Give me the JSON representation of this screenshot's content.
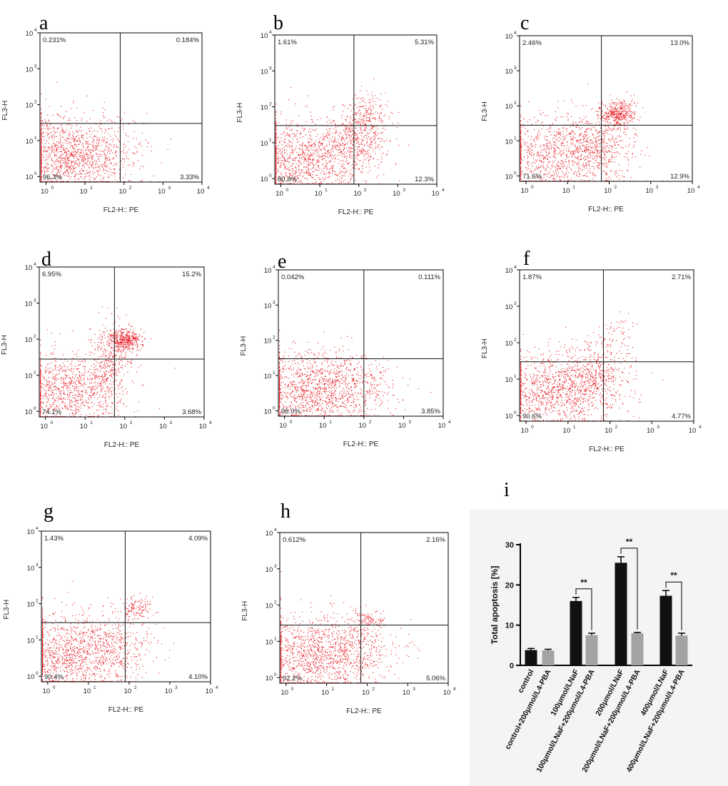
{
  "colors": {
    "dots": "#e8141c",
    "bar_black": "#111111",
    "bar_gray": "#a3a3a3",
    "panel_bg": "#f4f4f4"
  },
  "flow_axes": {
    "x_title": "FL2-H:: PE",
    "y_title": "FL3-H",
    "tick_base": "10",
    "tick_exps": [
      "0",
      "1",
      "2",
      "3",
      "4"
    ]
  },
  "chart_data": [
    {
      "type": "scatter",
      "panel": "a",
      "quadrants": {
        "ul": "0.231%",
        "ur": "0.184%",
        "ll": "96.3%",
        "lr": "3.33%"
      },
      "gate": {
        "x": 80,
        "y": 30
      },
      "xlabel": "FL2-H:: PE",
      "ylabel": "FL3-H",
      "xlim": [
        0.7,
        10000
      ],
      "ylim": [
        0.7,
        10000
      ],
      "scale": "log",
      "clusters": [
        {
          "cx": 3,
          "cy": 4,
          "sx": 0.8,
          "sy": 0.55,
          "n": 1300
        },
        {
          "cx": 35,
          "cy": 5,
          "sx": 0.5,
          "sy": 0.45,
          "n": 150
        }
      ]
    },
    {
      "type": "scatter",
      "panel": "b",
      "quadrants": {
        "ul": "1.61%",
        "ur": "5.31%",
        "ll": "80.8%",
        "lr": "12.3%"
      },
      "gate": {
        "x": 75,
        "y": 30
      },
      "xlabel": "FL2-H:: PE",
      "ylabel": "FL3-H",
      "xlim": [
        0.7,
        10000
      ],
      "ylim": [
        0.7,
        10000
      ],
      "scale": "log",
      "clusters": [
        {
          "cx": 4,
          "cy": 4,
          "sx": 0.8,
          "sy": 0.55,
          "n": 1150
        },
        {
          "cx": 80,
          "cy": 10,
          "sx": 0.4,
          "sy": 0.4,
          "n": 350
        },
        {
          "cx": 150,
          "cy": 60,
          "sx": 0.3,
          "sy": 0.35,
          "n": 220
        }
      ]
    },
    {
      "type": "scatter",
      "panel": "c",
      "quadrants": {
        "ul": "2.46%",
        "ur": "13.0%",
        "ll": "71.6%",
        "lr": "12.9%"
      },
      "gate": {
        "x": 65,
        "y": 28
      },
      "xlabel": "FL2-H:: PE",
      "ylabel": "FL3-H",
      "xlim": [
        0.7,
        10000
      ],
      "ylim": [
        0.7,
        10000
      ],
      "scale": "log",
      "clusters": [
        {
          "cx": 5,
          "cy": 4,
          "sx": 0.8,
          "sy": 0.55,
          "n": 1000
        },
        {
          "cx": 60,
          "cy": 8,
          "sx": 0.4,
          "sy": 0.4,
          "n": 350
        },
        {
          "cx": 160,
          "cy": 60,
          "sx": 0.2,
          "sy": 0.2,
          "n": 400
        }
      ]
    },
    {
      "type": "scatter",
      "panel": "d",
      "quadrants": {
        "ul": "6.95%",
        "ur": "15.2%",
        "ll": "74.1%",
        "lr": "3.68%"
      },
      "gate": {
        "x": 55,
        "y": 28
      },
      "xlabel": "FL2-H:: PE",
      "ylabel": "FL3-H",
      "xlim": [
        0.7,
        10000
      ],
      "ylim": [
        0.7,
        10000
      ],
      "scale": "log",
      "clusters": [
        {
          "cx": 4,
          "cy": 4,
          "sx": 0.7,
          "sy": 0.5,
          "n": 1000
        },
        {
          "cx": 45,
          "cy": 30,
          "sx": 0.25,
          "sy": 0.5,
          "n": 300
        },
        {
          "cx": 100,
          "cy": 100,
          "sx": 0.2,
          "sy": 0.15,
          "n": 400
        }
      ]
    },
    {
      "type": "scatter",
      "panel": "e",
      "quadrants": {
        "ul": "0.042%",
        "ur": "0.111%",
        "ll": "96.0%",
        "lr": "3.85%"
      },
      "gate": {
        "x": 100,
        "y": 30
      },
      "xlabel": "FL2-H:: PE",
      "ylabel": "FL3-H",
      "xlim": [
        0.7,
        10000
      ],
      "ylim": [
        0.7,
        10000
      ],
      "scale": "log",
      "clusters": [
        {
          "cx": 5,
          "cy": 4,
          "sx": 0.8,
          "sy": 0.55,
          "n": 1250
        },
        {
          "cx": 60,
          "cy": 5,
          "sx": 0.5,
          "sy": 0.45,
          "n": 200
        }
      ]
    },
    {
      "type": "scatter",
      "panel": "f",
      "quadrants": {
        "ul": "1.87%",
        "ur": "2.71%",
        "ll": "90.6%",
        "lr": "4.77%"
      },
      "gate": {
        "x": 70,
        "y": 30
      },
      "xlabel": "FL2-H:: PE",
      "ylabel": "FL3-H",
      "xlim": [
        0.7,
        10000
      ],
      "ylim": [
        0.7,
        10000
      ],
      "scale": "log",
      "clusters": [
        {
          "cx": 6,
          "cy": 5,
          "sx": 0.8,
          "sy": 0.5,
          "n": 1250
        },
        {
          "cx": 40,
          "cy": 15,
          "sx": 0.35,
          "sy": 0.45,
          "n": 250
        },
        {
          "cx": 150,
          "cy": 150,
          "sx": 0.25,
          "sy": 0.3,
          "n": 70
        }
      ]
    },
    {
      "type": "scatter",
      "panel": "g",
      "quadrants": {
        "ul": "1.43%",
        "ur": "4.09%",
        "ll": "90.4%",
        "lr": "4.10%"
      },
      "gate": {
        "x": 80,
        "y": 30
      },
      "xlabel": "FL2-H:: PE",
      "ylabel": "FL3-H",
      "xlim": [
        0.7,
        10000
      ],
      "ylim": [
        0.7,
        10000
      ],
      "scale": "log",
      "clusters": [
        {
          "cx": 4,
          "cy": 4,
          "sx": 0.8,
          "sy": 0.55,
          "n": 1250
        },
        {
          "cx": 60,
          "cy": 8,
          "sx": 0.4,
          "sy": 0.4,
          "n": 200
        },
        {
          "cx": 150,
          "cy": 80,
          "sx": 0.2,
          "sy": 0.15,
          "n": 120
        }
      ]
    },
    {
      "type": "scatter",
      "panel": "h",
      "quadrants": {
        "ul": "0.612%",
        "ur": "2.16%",
        "ll": "92.2%",
        "lr": "5.06%"
      },
      "gate": {
        "x": 70,
        "y": 28
      },
      "xlabel": "FL2-H:: PE",
      "ylabel": "FL3-H",
      "xlim": [
        0.7,
        10000
      ],
      "ylim": [
        0.7,
        10000
      ],
      "scale": "log",
      "clusters": [
        {
          "cx": 5,
          "cy": 4,
          "sx": 0.8,
          "sy": 0.55,
          "n": 1250
        },
        {
          "cx": 60,
          "cy": 10,
          "sx": 0.45,
          "sy": 0.45,
          "n": 200
        },
        {
          "cx": 100,
          "cy": 40,
          "sx": 0.2,
          "sy": 0.12,
          "n": 80
        }
      ]
    },
    {
      "type": "bar",
      "panel": "i",
      "ylabel": "Total apoptosis [%]",
      "ylim": [
        0,
        30
      ],
      "yticks": [
        "0",
        "10",
        "20",
        "30"
      ],
      "categories": [
        "control",
        "control+200μmol/L4-PBA",
        "100μmol/LNaF",
        "100μmol/LNaF+200μmol/L4-PBA",
        "200μmol/LNaF",
        "200μmol/LNaF+200μmol/L4-PBA",
        "400μmol/LNaF",
        "400μmol/LNaF+200μmol/L4-PBA"
      ],
      "values": [
        3.8,
        3.7,
        16.0,
        7.5,
        25.5,
        8.0,
        17.3,
        7.4
      ],
      "errors": [
        0.4,
        0.3,
        0.9,
        0.5,
        1.5,
        0.2,
        1.3,
        0.6
      ],
      "bar_colors": [
        "black",
        "gray",
        "black",
        "gray",
        "black",
        "gray",
        "black",
        "gray"
      ],
      "significance": [
        {
          "pair": [
            2,
            3
          ],
          "label": "**"
        },
        {
          "pair": [
            4,
            5
          ],
          "label": "**"
        },
        {
          "pair": [
            6,
            7
          ],
          "label": "**"
        }
      ]
    }
  ]
}
